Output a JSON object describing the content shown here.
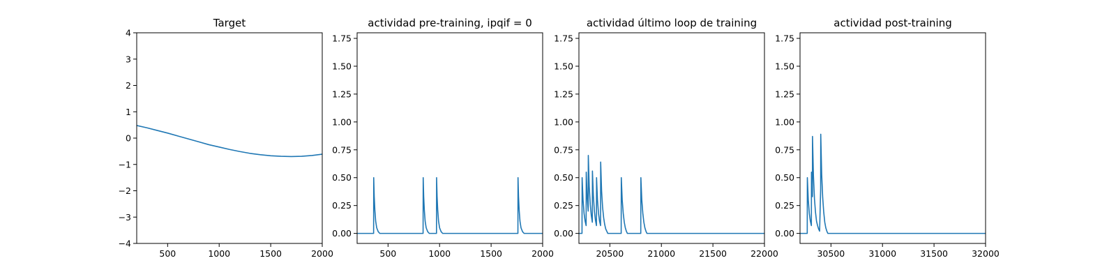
{
  "chart_data": [
    {
      "type": "line",
      "title": "Target",
      "xlabel": "",
      "ylabel": "",
      "xlim": [
        200,
        2000
      ],
      "ylim": [
        -4,
        4
      ],
      "xticks": [
        500,
        1000,
        1500,
        2000
      ],
      "yticks": [
        -4,
        -3,
        -2,
        -1,
        0,
        1,
        2,
        3,
        4
      ],
      "xtick_labels": [
        "500",
        "1000",
        "1500",
        "2000"
      ],
      "ytick_labels": [
        "−4",
        "−3",
        "−2",
        "−1",
        "0",
        "1",
        "2",
        "3",
        "4"
      ],
      "grid": false,
      "series": [
        {
          "color": "#1f77b4",
          "x": [
            200,
            300,
            400,
            500,
            600,
            700,
            800,
            900,
            1000,
            1100,
            1200,
            1300,
            1400,
            1500,
            1600,
            1700,
            1800,
            1900,
            2000
          ],
          "y": [
            0.48,
            0.39,
            0.29,
            0.19,
            0.08,
            -0.03,
            -0.14,
            -0.25,
            -0.34,
            -0.43,
            -0.51,
            -0.58,
            -0.63,
            -0.67,
            -0.69,
            -0.7,
            -0.69,
            -0.66,
            -0.61
          ]
        }
      ]
    },
    {
      "type": "line",
      "title": "actividad pre-training, ipqif = 0",
      "xlabel": "",
      "ylabel": "",
      "xlim": [
        200,
        2000
      ],
      "ylim": [
        -0.09,
        1.8
      ],
      "xticks": [
        500,
        1000,
        1500,
        2000
      ],
      "yticks": [
        0,
        0.25,
        0.5,
        0.75,
        1.0,
        1.25,
        1.5,
        1.75
      ],
      "xtick_labels": [
        "500",
        "1000",
        "1500",
        "2000"
      ],
      "ytick_labels": [
        "0.00",
        "0.25",
        "0.50",
        "0.75",
        "1.00",
        "1.25",
        "1.50",
        "1.75"
      ],
      "grid": false,
      "series": [
        {
          "color": "#1f77b4",
          "x": [
            200,
            360,
            361,
            366,
            372,
            380,
            390,
            405,
            420,
            840,
            841,
            846,
            852,
            860,
            870,
            885,
            900,
            970,
            971,
            976,
            982,
            990,
            1000,
            1015,
            1030,
            1760,
            1761,
            1766,
            1772,
            1780,
            1790,
            1805,
            1820,
            2000
          ],
          "y": [
            0,
            0,
            0.5,
            0.33,
            0.21,
            0.11,
            0.05,
            0.015,
            0,
            0,
            0.5,
            0.33,
            0.21,
            0.11,
            0.05,
            0.015,
            0,
            0,
            0.5,
            0.33,
            0.21,
            0.11,
            0.05,
            0.015,
            0,
            0,
            0.5,
            0.33,
            0.21,
            0.11,
            0.05,
            0.015,
            0,
            0
          ]
        }
      ]
    },
    {
      "type": "line",
      "title": "actividad último loop de training",
      "xlabel": "",
      "ylabel": "",
      "xlim": [
        20200,
        22000
      ],
      "ylim": [
        -0.09,
        1.8
      ],
      "xticks": [
        20500,
        21000,
        21500,
        22000
      ],
      "yticks": [
        0,
        0.25,
        0.5,
        0.75,
        1.0,
        1.25,
        1.5,
        1.75
      ],
      "xtick_labels": [
        "20500",
        "21000",
        "21500",
        "22000"
      ],
      "ytick_labels": [
        "0.00",
        "0.25",
        "0.50",
        "0.75",
        "1.00",
        "1.25",
        "1.50",
        "1.75"
      ],
      "grid": false,
      "series": [
        {
          "color": "#1f77b4",
          "x": [
            20200,
            20230,
            20231,
            20240,
            20250,
            20260,
            20270,
            20271,
            20280,
            20290,
            20291,
            20300,
            20310,
            20320,
            20330,
            20331,
            20340,
            20350,
            20360,
            20370,
            20371,
            20380,
            20390,
            20400,
            20410,
            20411,
            20420,
            20430,
            20440,
            20450,
            20460,
            20470,
            20480,
            20610,
            20611,
            20620,
            20630,
            20640,
            20650,
            20660,
            20670,
            20800,
            20801,
            20810,
            20820,
            20830,
            20840,
            20850,
            20860,
            22000
          ],
          "y": [
            0,
            0,
            0.5,
            0.3,
            0.18,
            0.11,
            0.07,
            0.55,
            0.33,
            0.2,
            0.7,
            0.42,
            0.26,
            0.16,
            0.1,
            0.56,
            0.34,
            0.2,
            0.12,
            0.07,
            0.5,
            0.3,
            0.18,
            0.11,
            0.07,
            0.64,
            0.38,
            0.23,
            0.14,
            0.08,
            0.04,
            0.02,
            0,
            0,
            0.5,
            0.3,
            0.18,
            0.1,
            0.05,
            0.02,
            0,
            0,
            0.5,
            0.3,
            0.18,
            0.1,
            0.05,
            0.02,
            0,
            0
          ]
        }
      ]
    },
    {
      "type": "line",
      "title": "actividad post-training",
      "xlabel": "",
      "ylabel": "",
      "xlim": [
        30200,
        32000
      ],
      "ylim": [
        -0.09,
        1.8
      ],
      "xticks": [
        30500,
        31000,
        31500,
        32000
      ],
      "yticks": [
        0,
        0.25,
        0.5,
        0.75,
        1.0,
        1.25,
        1.5,
        1.75
      ],
      "xtick_labels": [
        "30500",
        "31000",
        "31500",
        "32000"
      ],
      "ytick_labels": [
        "0.00",
        "0.25",
        "0.50",
        "0.75",
        "1.00",
        "1.25",
        "1.50",
        "1.75"
      ],
      "grid": false,
      "series": [
        {
          "color": "#1f77b4",
          "x": [
            30200,
            30270,
            30271,
            30280,
            30290,
            30300,
            30310,
            30311,
            30320,
            30321,
            30330,
            30340,
            30350,
            30360,
            30370,
            30380,
            30390,
            30400,
            30401,
            30410,
            30420,
            30430,
            30440,
            30450,
            30460,
            30470,
            32000
          ],
          "y": [
            0,
            0,
            0.5,
            0.3,
            0.18,
            0.11,
            0.07,
            0.55,
            0.33,
            0.87,
            0.52,
            0.31,
            0.19,
            0.11,
            0.07,
            0.04,
            0.02,
            0.4,
            0.89,
            0.53,
            0.32,
            0.19,
            0.1,
            0.05,
            0.02,
            0,
            0
          ]
        }
      ]
    }
  ]
}
